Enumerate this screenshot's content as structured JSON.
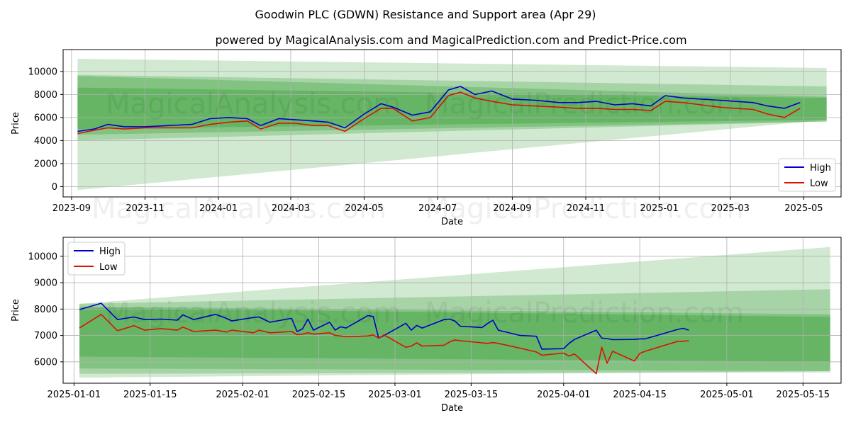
{
  "header": {
    "title": "Goodwin PLC (GDWN) Resistance and Support area (Apr 29)",
    "subtitle": "powered by MagicalAnalysis.com and MagicalPrediction.com and Predict-Price.com"
  },
  "watermarks": [
    "MagicalAnalysis.com",
    "MagicalPrediction.com"
  ],
  "colors": {
    "high": "#0000cc",
    "low": "#dd1100",
    "band": "#2e9a2e",
    "grid": "#b0b0b0"
  },
  "chart_data": [
    {
      "type": "line",
      "xlabel": "Date",
      "ylabel": "Price",
      "x_ticks": [
        "2023-09",
        "2023-11",
        "2024-01",
        "2024-03",
        "2024-05",
        "2024-07",
        "2024-09",
        "2024-11",
        "2025-01",
        "2025-03",
        "2025-05"
      ],
      "y_ticks": [
        "0",
        "2000",
        "4000",
        "6000",
        "8000",
        "10000"
      ],
      "xlim": [
        "2023-08-25",
        "2025-06-01"
      ],
      "ylim": [
        -900,
        11900
      ],
      "grid": true,
      "legend_position": "lower right",
      "legend": [
        "High",
        "Low"
      ],
      "bands": [
        {
          "x": [
            "2023-09-06",
            "2025-05-20"
          ],
          "upper": [
            11100,
            10300
          ],
          "lower": [
            -300,
            5800
          ]
        },
        {
          "x": [
            "2023-09-06",
            "2025-05-20"
          ],
          "upper": [
            9700,
            8700
          ],
          "lower": [
            4000,
            5650
          ]
        },
        {
          "x": [
            "2023-09-06",
            "2025-05-20"
          ],
          "upper": [
            9600,
            7800
          ],
          "lower": [
            4500,
            5650
          ]
        },
        {
          "x": [
            "2023-09-06",
            "2025-05-20"
          ],
          "upper": [
            8600,
            7700
          ],
          "lower": [
            5000,
            5800
          ]
        }
      ],
      "series": [
        {
          "name": "High",
          "x": [
            "2023-09-06",
            "2023-09-20",
            "2023-10-01",
            "2023-10-15",
            "2023-11-01",
            "2023-11-20",
            "2023-12-10",
            "2023-12-25",
            "2024-01-10",
            "2024-01-25",
            "2024-02-05",
            "2024-02-20",
            "2024-03-05",
            "2024-03-20",
            "2024-04-01",
            "2024-04-15",
            "2024-05-01",
            "2024-05-15",
            "2024-05-25",
            "2024-06-10",
            "2024-06-25",
            "2024-07-10",
            "2024-07-20",
            "2024-08-01",
            "2024-08-15",
            "2024-09-01",
            "2024-09-20",
            "2024-10-10",
            "2024-10-25",
            "2024-11-10",
            "2024-11-25",
            "2024-12-10",
            "2024-12-25",
            "2025-01-06",
            "2025-01-21",
            "2025-02-05",
            "2025-02-20",
            "2025-03-05",
            "2025-03-20",
            "2025-04-01",
            "2025-04-15",
            "2025-04-28"
          ],
          "values": [
            4800,
            5000,
            5400,
            5200,
            5200,
            5300,
            5400,
            5900,
            6000,
            5900,
            5300,
            5900,
            5800,
            5700,
            5600,
            5100,
            6300,
            7200,
            6900,
            6200,
            6500,
            8400,
            8700,
            8000,
            8300,
            7600,
            7500,
            7300,
            7300,
            7400,
            7100,
            7200,
            7000,
            7900,
            7700,
            7600,
            7500,
            7400,
            7300,
            7000,
            6800,
            7300
          ]
        },
        {
          "name": "Low",
          "x": [
            "2023-09-06",
            "2023-09-20",
            "2023-10-01",
            "2023-10-15",
            "2023-11-01",
            "2023-11-20",
            "2023-12-10",
            "2023-12-25",
            "2024-01-10",
            "2024-01-25",
            "2024-02-05",
            "2024-02-20",
            "2024-03-05",
            "2024-03-20",
            "2024-04-01",
            "2024-04-15",
            "2024-05-01",
            "2024-05-15",
            "2024-05-25",
            "2024-06-10",
            "2024-06-25",
            "2024-07-10",
            "2024-07-20",
            "2024-08-01",
            "2024-08-15",
            "2024-09-01",
            "2024-09-20",
            "2024-10-10",
            "2024-10-25",
            "2024-11-10",
            "2024-11-25",
            "2024-12-10",
            "2024-12-25",
            "2025-01-06",
            "2025-01-21",
            "2025-02-05",
            "2025-02-20",
            "2025-03-05",
            "2025-03-20",
            "2025-04-01",
            "2025-04-15",
            "2025-04-28"
          ],
          "values": [
            4600,
            4900,
            5100,
            5000,
            5100,
            5100,
            5100,
            5400,
            5600,
            5700,
            5000,
            5500,
            5500,
            5300,
            5300,
            4800,
            5900,
            6800,
            6800,
            5700,
            6000,
            7900,
            8200,
            7700,
            7400,
            7100,
            7000,
            6900,
            6800,
            6800,
            6700,
            6700,
            6600,
            7400,
            7300,
            7100,
            6900,
            6800,
            6700,
            6300,
            6000,
            6800
          ]
        }
      ]
    },
    {
      "type": "line",
      "xlabel": "Date",
      "ylabel": "Price",
      "x_ticks": [
        "2025-01-01",
        "2025-01-15",
        "2025-02-01",
        "2025-02-15",
        "2025-03-01",
        "2025-03-15",
        "2025-04-01",
        "2025-04-15",
        "2025-05-01",
        "2025-05-15"
      ],
      "y_ticks": [
        "6000",
        "7000",
        "8000",
        "9000",
        "10000"
      ],
      "xlim": [
        "2024-12-30",
        "2025-05-22"
      ],
      "ylim": [
        5190,
        10720
      ],
      "grid": true,
      "legend_position": "upper left",
      "legend": [
        "High",
        "Low"
      ],
      "bands": [
        {
          "x": [
            "2025-01-02",
            "2025-05-20"
          ],
          "upper": [
            8200,
            10350
          ],
          "lower": [
            5400,
            5650
          ]
        },
        {
          "x": [
            "2025-01-02",
            "2025-05-20"
          ],
          "upper": [
            8200,
            8750
          ],
          "lower": [
            5550,
            5600
          ]
        },
        {
          "x": [
            "2025-01-02",
            "2025-05-20"
          ],
          "upper": [
            8100,
            7800
          ],
          "lower": [
            5750,
            5650
          ]
        },
        {
          "x": [
            "2025-01-02",
            "2025-05-20"
          ],
          "upper": [
            8050,
            7700
          ],
          "lower": [
            6200,
            6000
          ]
        }
      ],
      "series": [
        {
          "name": "High",
          "x": [
            "2025-01-02",
            "2025-01-06",
            "2025-01-09",
            "2025-01-12",
            "2025-01-14",
            "2025-01-17",
            "2025-01-20",
            "2025-01-21",
            "2025-01-23",
            "2025-01-27",
            "2025-01-29",
            "2025-01-30",
            "2025-02-03",
            "2025-02-04",
            "2025-02-06",
            "2025-02-10",
            "2025-02-11",
            "2025-02-12",
            "2025-02-13",
            "2025-02-14",
            "2025-02-17",
            "2025-02-18",
            "2025-02-19",
            "2025-02-20",
            "2025-02-24",
            "2025-02-25",
            "2025-02-26",
            "2025-02-27",
            "2025-03-03",
            "2025-03-04",
            "2025-03-05",
            "2025-03-06",
            "2025-03-10",
            "2025-03-11",
            "2025-03-12",
            "2025-03-13",
            "2025-03-17",
            "2025-03-18",
            "2025-03-19",
            "2025-03-20",
            "2025-03-24",
            "2025-03-27",
            "2025-03-28",
            "2025-04-01",
            "2025-04-02",
            "2025-04-03",
            "2025-04-07",
            "2025-04-08",
            "2025-04-09",
            "2025-04-10",
            "2025-04-14",
            "2025-04-15",
            "2025-04-16",
            "2025-04-22",
            "2025-04-23",
            "2025-04-24"
          ],
          "values": [
            7980,
            8220,
            7600,
            7700,
            7600,
            7620,
            7580,
            7780,
            7600,
            7800,
            7650,
            7550,
            7680,
            7700,
            7500,
            7650,
            7150,
            7250,
            7620,
            7200,
            7500,
            7200,
            7330,
            7280,
            7750,
            7720,
            6900,
            7000,
            7460,
            7200,
            7380,
            7280,
            7600,
            7620,
            7550,
            7350,
            7300,
            7450,
            7580,
            7200,
            7000,
            6970,
            6480,
            6500,
            6700,
            6850,
            7200,
            6900,
            6880,
            6840,
            6850,
            6870,
            6870,
            7230,
            7270,
            7200
          ]
        },
        {
          "name": "Low",
          "x": [
            "2025-01-02",
            "2025-01-06",
            "2025-01-09",
            "2025-01-12",
            "2025-01-14",
            "2025-01-17",
            "2025-01-20",
            "2025-01-21",
            "2025-01-23",
            "2025-01-27",
            "2025-01-29",
            "2025-01-30",
            "2025-02-03",
            "2025-02-04",
            "2025-02-06",
            "2025-02-10",
            "2025-02-11",
            "2025-02-12",
            "2025-02-13",
            "2025-02-14",
            "2025-02-17",
            "2025-02-18",
            "2025-02-19",
            "2025-02-20",
            "2025-02-24",
            "2025-02-25",
            "2025-02-26",
            "2025-02-27",
            "2025-03-03",
            "2025-03-04",
            "2025-03-05",
            "2025-03-06",
            "2025-03-10",
            "2025-03-11",
            "2025-03-12",
            "2025-03-13",
            "2025-03-17",
            "2025-03-18",
            "2025-03-19",
            "2025-03-20",
            "2025-03-24",
            "2025-03-27",
            "2025-03-28",
            "2025-04-01",
            "2025-04-02",
            "2025-04-03",
            "2025-04-07",
            "2025-04-08",
            "2025-04-09",
            "2025-04-10",
            "2025-04-14",
            "2025-04-15",
            "2025-04-16",
            "2025-04-22",
            "2025-04-23",
            "2025-04-24"
          ],
          "values": [
            7280,
            7800,
            7180,
            7370,
            7200,
            7260,
            7200,
            7320,
            7150,
            7200,
            7130,
            7200,
            7100,
            7200,
            7100,
            7150,
            7030,
            7050,
            7100,
            7050,
            7100,
            7000,
            6980,
            6950,
            6980,
            7020,
            6900,
            7020,
            6550,
            6600,
            6720,
            6600,
            6630,
            6750,
            6830,
            6800,
            6720,
            6700,
            6730,
            6700,
            6520,
            6370,
            6250,
            6330,
            6220,
            6300,
            5550,
            6550,
            5950,
            6400,
            6030,
            6320,
            6400,
            6780,
            6780,
            6800
          ]
        }
      ]
    }
  ]
}
